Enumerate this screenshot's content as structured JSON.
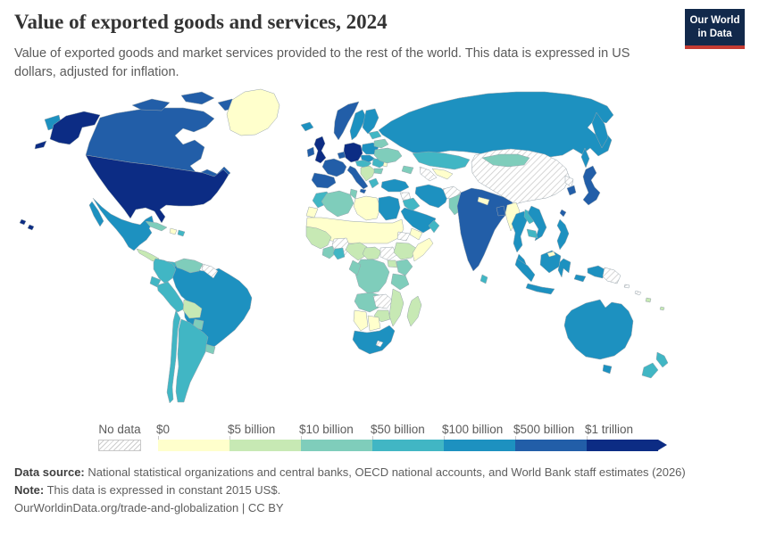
{
  "header": {
    "title": "Value of exported goods and services, 2024",
    "subtitle": "Value of exported goods and market services provided to the rest of the world. This data is expressed in US dollars, adjusted for inflation.",
    "logo": {
      "line1": "Our World",
      "line2": "in Data",
      "bg": "#12294b",
      "accent": "#c43b32"
    }
  },
  "legend": {
    "no_data_label": "No data",
    "bins": [
      {
        "key": "b0",
        "label": "$0",
        "color": "#ffffcc"
      },
      {
        "key": "b5",
        "label": "$5 billion",
        "color": "#c7e9b4"
      },
      {
        "key": "b10",
        "label": "$10 billion",
        "color": "#7fcdbb"
      },
      {
        "key": "b50",
        "label": "$50 billion",
        "color": "#41b6c4"
      },
      {
        "key": "b100",
        "label": "$100 billion",
        "color": "#1d91c0"
      },
      {
        "key": "b500",
        "label": "$500 billion",
        "color": "#225ea8"
      },
      {
        "key": "b1000",
        "label": "$1 trillion",
        "color": "#0c2c84"
      }
    ]
  },
  "footer": {
    "source_label": "Data source:",
    "source_text": " National statistical organizations and central banks, OECD national accounts, and World Bank staff estimates (2026)",
    "note_label": "Note:",
    "note_text": " This data is expressed in constant 2015 US$.",
    "link_text": "OurWorldinData.org/trade-and-globalization | CC BY"
  },
  "map": {
    "ocean": "#ffffff",
    "border_color": "#97a4ac",
    "palette": {
      "b0": "#ffffcc",
      "b5": "#c7e9b4",
      "b10": "#7fcdbb",
      "b50": "#41b6c4",
      "b100": "#1d91c0",
      "b500": "#225ea8",
      "b1000": "#0c2c84",
      "nodata": "url(#hatch)"
    },
    "regions": {
      "usa": "b1000",
      "hawaii": "b1000",
      "canada": "b500",
      "greenland": "b0",
      "mexico": "b100",
      "central-america": "b5",
      "costa-rica-panama": "b50",
      "cuba": "b10",
      "haiti": "b0",
      "dominican-republic": "b50",
      "colombia": "b50",
      "venezuela": "b10",
      "guyana": "nodata",
      "ecuador": "b50",
      "peru": "b50",
      "brazil": "b100",
      "bolivia": "b5",
      "paraguay": "b10",
      "uruguay": "b10",
      "argentina": "b50",
      "chile": "b50",
      "iceland": "b100",
      "ireland": "b500",
      "uk": "b1000",
      "norway": "b500",
      "sweden": "b100",
      "finland": "b100",
      "denmark": "b500",
      "benelux": "b500",
      "germany": "b1000",
      "france": "b500",
      "iberia": "b500",
      "italy": "b500",
      "austria-hungary": "b50",
      "poland": "b100",
      "czech-slovakia": "b100",
      "balkans": "b5",
      "greece": "b50",
      "romania": "b50",
      "bulgaria": "b10",
      "ukraine": "b10",
      "belarus": "b10",
      "baltics": "b50",
      "moldova": "b0",
      "russia": "b100",
      "kazakhstan": "b50",
      "uzbekistan": "b0",
      "turkmenistan": "nodata",
      "caucasus": "b10",
      "turkey": "b100",
      "syria": "nodata",
      "iraq": "b50",
      "iran": "b100",
      "saudi-arabia": "b100",
      "yemen": "b0",
      "oman": "b50",
      "afghanistan": "nodata",
      "pakistan": "b10",
      "india": "b500",
      "nepal": "b0",
      "bangladesh": "b500",
      "sri-lanka": "b50",
      "myanmar": "b0",
      "thailand": "b100",
      "laos": "b50",
      "vietnam": "b100",
      "cambodia": "b50",
      "malaysia": "b100",
      "brunei": "b0",
      "china": "nodata",
      "mongolia": "b10",
      "north-korea": "nodata",
      "south-korea": "b500",
      "japan": "b500",
      "taiwan": "b500",
      "philippines": "b100",
      "indonesia": "b100",
      "papua-new-guinea": "nodata",
      "australia": "b100",
      "new-zealand": "b50",
      "fiji": "b5",
      "pacific-islands": "nodata",
      "morocco": "b50",
      "western-sahara": "b0",
      "algeria": "b10",
      "tunisia": "b10",
      "libya": "b0",
      "egypt": "b100",
      "sahara-sahel": "b0",
      "burkina-region": "nodata",
      "senegal-guinea": "b5",
      "ivory-coast": "b10",
      "ghana": "b50",
      "nigeria": "b5",
      "cameroon": "b5",
      "south-sudan": "nodata",
      "eritrea": "nodata",
      "ethiopia": "b5",
      "somalia": "b0",
      "kenya": "b10",
      "uganda": "b5",
      "tanzania": "b10",
      "drc": "b10",
      "congo-gabon": "b10",
      "angola": "b10",
      "zambia": "nodata",
      "zimbabwe": "b5",
      "mozambique": "b5",
      "namibia": "b0",
      "botswana": "b0",
      "south-africa": "b100",
      "lesotho": "nodata",
      "madagascar": "b5"
    }
  }
}
